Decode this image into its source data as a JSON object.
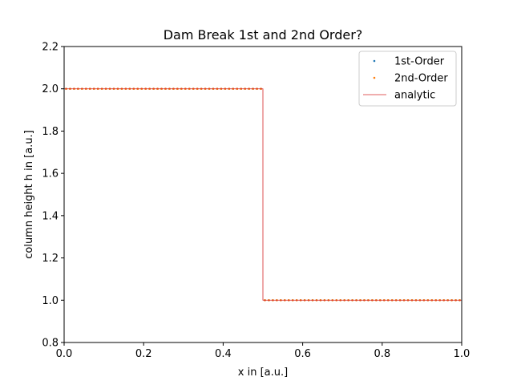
{
  "chart_data": {
    "type": "line",
    "title": "Dam Break 1st and 2nd Order?",
    "xlabel": "x in [a.u.]",
    "ylabel": "column height h in [a.u.]",
    "xlim": [
      0.0,
      1.0
    ],
    "ylim": [
      0.8,
      2.2
    ],
    "xticks": [
      "0.0",
      "0.2",
      "0.4",
      "0.6",
      "0.8",
      "1.0"
    ],
    "yticks": [
      "0.8",
      "1.0",
      "1.2",
      "1.4",
      "1.6",
      "1.8",
      "2.0",
      "2.2"
    ],
    "grid": false,
    "legend_position": "top-right",
    "series": [
      {
        "name": "1st-Order",
        "style": "points",
        "color": "#1f77b4",
        "x_start": 0.0,
        "x_end": 1.0,
        "count": 100,
        "discontinuity_x": 0.5,
        "left_value": 2.0,
        "right_value": 1.0
      },
      {
        "name": "2nd-Order",
        "style": "points",
        "color": "#ff7f0e",
        "x_start": 0.0,
        "x_end": 1.0,
        "count": 100,
        "discontinuity_x": 0.5,
        "left_value": 2.0,
        "right_value": 1.0
      },
      {
        "name": "analytic",
        "style": "line",
        "color": "#d62728",
        "x": [
          0.0,
          0.5,
          0.5,
          1.0
        ],
        "y": [
          2.0,
          2.0,
          1.0,
          1.0
        ]
      }
    ]
  }
}
